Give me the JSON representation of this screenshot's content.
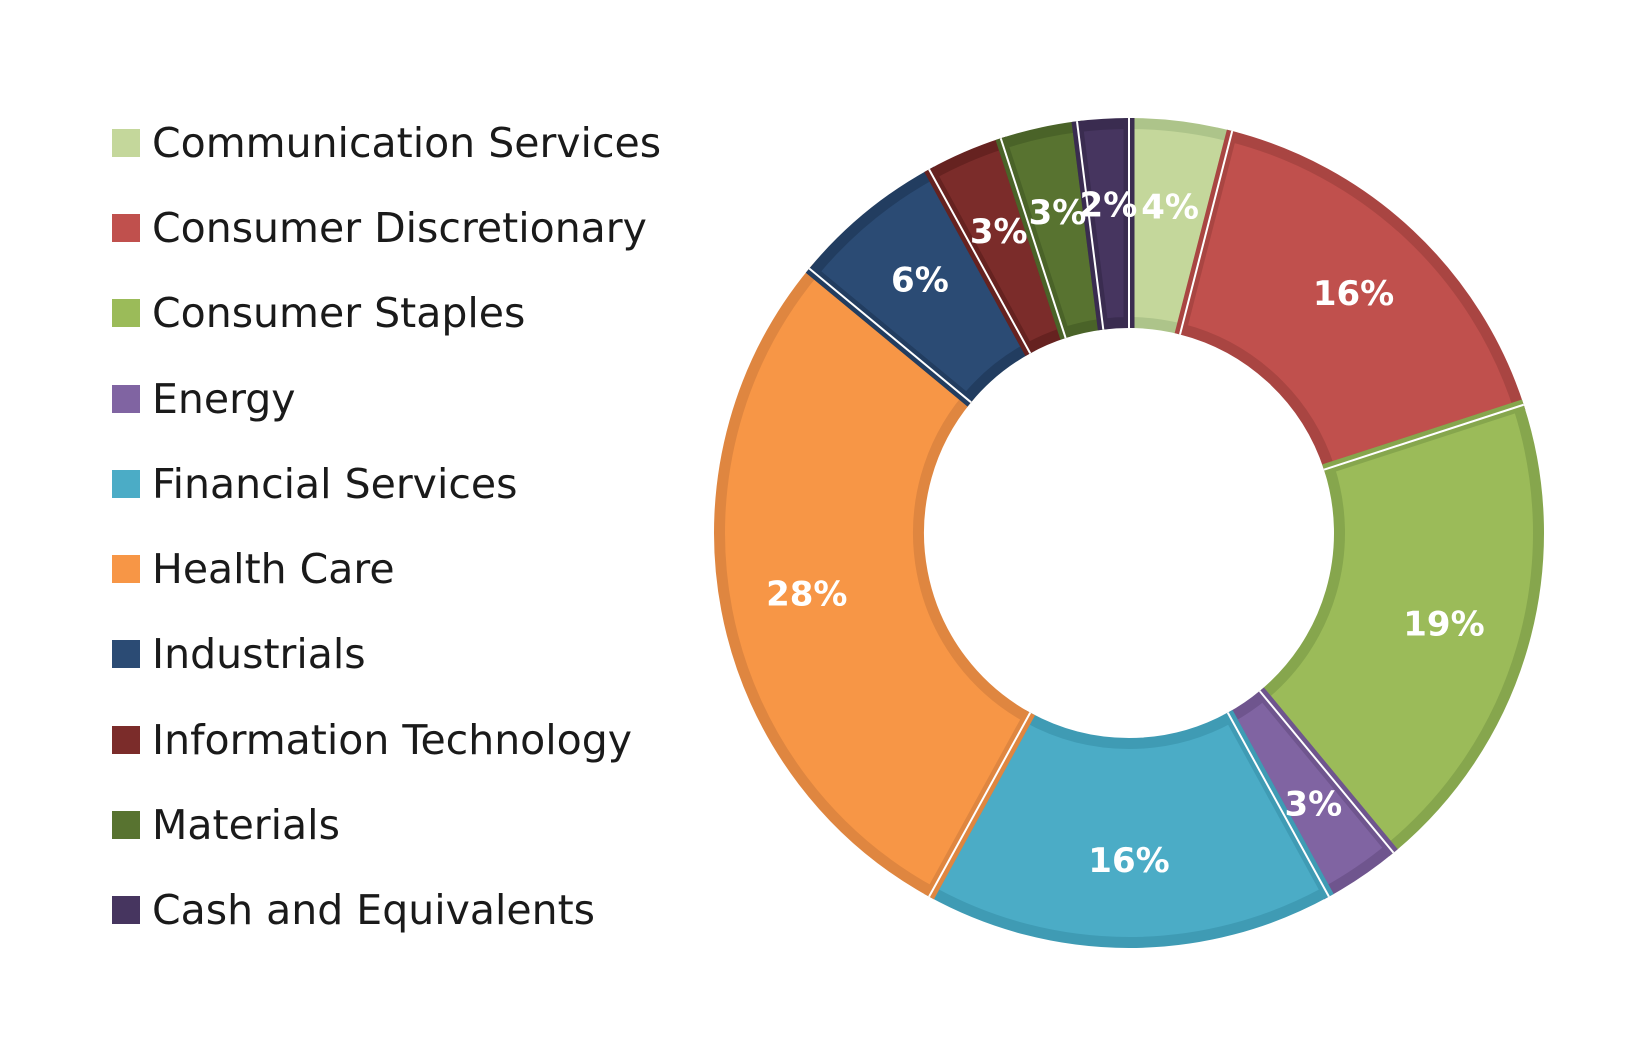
{
  "chart_data": {
    "type": "pie",
    "variant": "donut",
    "legend_position": "left",
    "categories": [
      "Communication Services",
      "Consumer Discretionary",
      "Consumer Staples",
      "Energy",
      "Financial Services",
      "Health Care",
      "Industrials",
      "Information Technology",
      "Materials",
      "Cash and Equivalents"
    ],
    "values": [
      4,
      16,
      19,
      3,
      16,
      28,
      6,
      3,
      3,
      2
    ],
    "data_labels": [
      "4%",
      "16%",
      "19%",
      "3%",
      "16%",
      "28%",
      "6%",
      "3%",
      "3%",
      "2%"
    ],
    "colors": [
      "#c4d79b",
      "#c0504d",
      "#9bbb59",
      "#8064a2",
      "#4bacc6",
      "#f79646",
      "#2b4b74",
      "#7b2c2a",
      "#587330",
      "#46355f"
    ],
    "border_colors": [
      "#adc48a",
      "#a94542",
      "#86a64d",
      "#6f558e",
      "#3f9bb4",
      "#df8640",
      "#223d60",
      "#662220",
      "#4a6328",
      "#3a2c50"
    ]
  }
}
